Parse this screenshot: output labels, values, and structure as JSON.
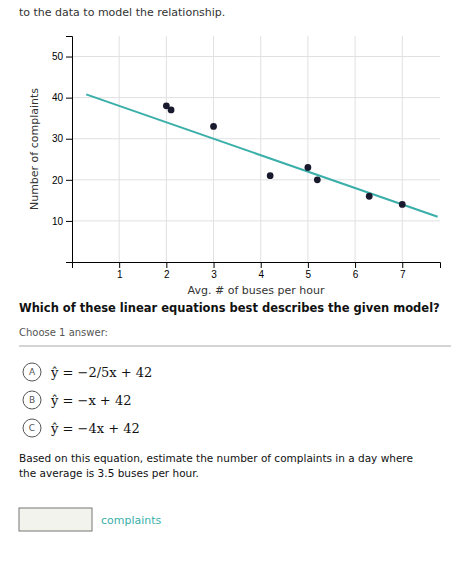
{
  "chart_data": {
    "type": "scatter",
    "xlabel": "Avg. # of buses per hour",
    "ylabel": "Number of complaints",
    "xlim": [
      0,
      7.8
    ],
    "ylim": [
      0,
      55
    ],
    "xticks": [
      1,
      2,
      3,
      4,
      5,
      6,
      7
    ],
    "yticks": [
      10,
      20,
      30,
      40,
      50
    ],
    "grid": true,
    "series": [
      {
        "type": "scatter",
        "marker": "circle",
        "color": "#1a1a2e",
        "x": [
          2,
          2.1,
          3,
          4.2,
          5,
          5.2,
          6.3,
          7
        ],
        "values": [
          38,
          37,
          33,
          21,
          23,
          20,
          16,
          14
        ]
      },
      {
        "type": "line",
        "line_style": "solid",
        "color": "#3aafa9",
        "x": [
          0.3,
          7.75
        ],
        "values": [
          40.8,
          11
        ]
      }
    ],
    "annotations": [
      "to the data to model the relationship.",
      "Which of these linear equations best describes the given model?",
      "Choose 1 answer:",
      "A",
      "ŷ = −2/5x + 42",
      "B",
      "ŷ = −x + 42",
      "C",
      "ŷ = −4x + 42",
      "Based on this equation, estimate the number of complaints in a day where\nthe average is 3.5 buses per hour.",
      "complaints"
    ]
  }
}
